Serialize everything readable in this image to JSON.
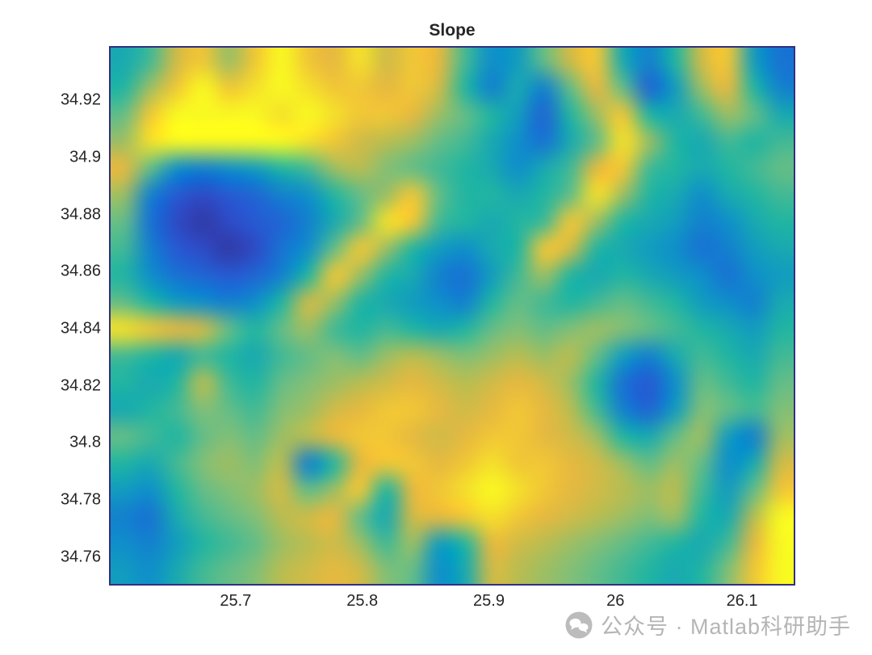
{
  "title": "Slope",
  "watermark": {
    "text": "公众号 · Matlab科研助手",
    "icon": "chat-bubbles-icon",
    "color": "#b5b5b5"
  },
  "styles": {
    "background": "#ffffff",
    "axis_text_color": "#262626",
    "axes_border_color": "#31307f"
  },
  "chart_data": {
    "type": "heatmap",
    "title": "Slope",
    "xlabel": "",
    "ylabel": "",
    "x_range": [
      25.6,
      26.142
    ],
    "y_range": [
      34.75,
      34.939
    ],
    "x_ticks": [
      25.7,
      25.8,
      25.9,
      26,
      26.1
    ],
    "x_tick_labels": [
      "25.7",
      "25.8",
      "25.9",
      "26",
      "26.1"
    ],
    "y_ticks": [
      34.92,
      34.9,
      34.88,
      34.86,
      34.84,
      34.82,
      34.8,
      34.78,
      34.76
    ],
    "y_tick_labels": [
      "34.92",
      "34.9",
      "34.88",
      "34.86",
      "34.84",
      "34.82",
      "34.8",
      "34.78",
      "34.76"
    ],
    "legend": "none",
    "grid": false,
    "colormap": "parula",
    "colormap_stops": [
      [
        0.0,
        "#352a87"
      ],
      [
        0.12,
        "#2c52d3"
      ],
      [
        0.25,
        "#1873d3"
      ],
      [
        0.37,
        "#0d95c8"
      ],
      [
        0.5,
        "#21b5a2"
      ],
      [
        0.62,
        "#71bf82"
      ],
      [
        0.75,
        "#b9bd51"
      ],
      [
        0.87,
        "#efb83c"
      ],
      [
        1.0,
        "#f9f921"
      ]
    ],
    "value_scale": [
      0,
      1
    ],
    "rows_order": "top-to-bottom (latitude 34.935 down to 34.755)",
    "cols_order": "left-to-right (longitude 25.62 up to 26.15)",
    "values": [
      [
        0.45,
        0.55,
        0.8,
        0.9,
        0.7,
        0.9,
        1.0,
        0.9,
        0.85,
        0.95,
        0.8,
        0.9,
        0.85,
        0.55,
        0.35,
        0.4,
        0.6,
        0.8,
        0.9,
        0.45,
        0.3,
        0.5,
        0.8,
        0.9,
        0.4,
        0.25
      ],
      [
        0.5,
        0.7,
        0.9,
        1.0,
        0.9,
        0.95,
        1.0,
        0.95,
        0.9,
        0.9,
        0.85,
        0.9,
        0.8,
        0.5,
        0.3,
        0.45,
        0.3,
        0.6,
        0.85,
        0.6,
        0.2,
        0.4,
        0.7,
        0.85,
        0.5,
        0.3
      ],
      [
        0.6,
        0.9,
        1.0,
        1.0,
        1.0,
        1.0,
        0.95,
        1.0,
        0.95,
        0.9,
        0.9,
        0.85,
        0.7,
        0.6,
        0.5,
        0.4,
        0.2,
        0.5,
        0.7,
        0.9,
        0.5,
        0.45,
        0.55,
        0.7,
        0.6,
        0.45
      ],
      [
        0.7,
        0.95,
        1.0,
        1.0,
        1.0,
        1.0,
        1.0,
        0.95,
        0.9,
        0.8,
        0.75,
        0.7,
        0.6,
        0.55,
        0.45,
        0.35,
        0.25,
        0.45,
        0.6,
        0.95,
        0.7,
        0.5,
        0.45,
        0.55,
        0.5,
        0.55
      ],
      [
        0.85,
        0.6,
        0.35,
        0.3,
        0.35,
        0.4,
        0.5,
        0.55,
        0.7,
        0.75,
        0.65,
        0.6,
        0.55,
        0.5,
        0.45,
        0.35,
        0.45,
        0.55,
        0.85,
        0.9,
        0.55,
        0.5,
        0.45,
        0.5,
        0.55,
        0.6
      ],
      [
        0.7,
        0.3,
        0.15,
        0.1,
        0.15,
        0.2,
        0.3,
        0.35,
        0.5,
        0.6,
        0.7,
        0.9,
        0.6,
        0.5,
        0.5,
        0.45,
        0.5,
        0.6,
        0.95,
        0.7,
        0.5,
        0.45,
        0.35,
        0.45,
        0.5,
        0.55
      ],
      [
        0.6,
        0.25,
        0.1,
        0.05,
        0.1,
        0.15,
        0.2,
        0.3,
        0.45,
        0.6,
        0.95,
        0.9,
        0.55,
        0.5,
        0.45,
        0.5,
        0.55,
        0.9,
        0.7,
        0.5,
        0.45,
        0.4,
        0.3,
        0.35,
        0.45,
        0.5
      ],
      [
        0.55,
        0.3,
        0.15,
        0.1,
        0.05,
        0.1,
        0.25,
        0.35,
        0.6,
        0.9,
        0.7,
        0.5,
        0.4,
        0.35,
        0.45,
        0.5,
        0.9,
        0.8,
        0.5,
        0.45,
        0.4,
        0.35,
        0.25,
        0.3,
        0.4,
        0.45
      ],
      [
        0.5,
        0.35,
        0.25,
        0.2,
        0.15,
        0.2,
        0.3,
        0.5,
        0.9,
        0.7,
        0.5,
        0.45,
        0.3,
        0.25,
        0.4,
        0.55,
        0.7,
        0.5,
        0.45,
        0.5,
        0.45,
        0.4,
        0.35,
        0.25,
        0.35,
        0.4
      ],
      [
        0.6,
        0.5,
        0.4,
        0.35,
        0.3,
        0.35,
        0.5,
        0.8,
        0.7,
        0.5,
        0.45,
        0.4,
        0.35,
        0.3,
        0.5,
        0.6,
        0.55,
        0.5,
        0.55,
        0.6,
        0.55,
        0.5,
        0.4,
        0.35,
        0.3,
        0.45
      ],
      [
        0.95,
        0.9,
        0.85,
        0.8,
        0.6,
        0.5,
        0.6,
        0.7,
        0.55,
        0.5,
        0.55,
        0.5,
        0.45,
        0.5,
        0.6,
        0.65,
        0.6,
        0.65,
        0.7,
        0.65,
        0.6,
        0.55,
        0.5,
        0.45,
        0.4,
        0.5
      ],
      [
        0.55,
        0.5,
        0.45,
        0.55,
        0.5,
        0.45,
        0.55,
        0.6,
        0.65,
        0.6,
        0.7,
        0.75,
        0.7,
        0.65,
        0.7,
        0.75,
        0.7,
        0.75,
        0.6,
        0.4,
        0.3,
        0.45,
        0.55,
        0.5,
        0.45,
        0.55
      ],
      [
        0.5,
        0.45,
        0.5,
        0.75,
        0.55,
        0.5,
        0.6,
        0.65,
        0.7,
        0.75,
        0.8,
        0.85,
        0.8,
        0.75,
        0.8,
        0.85,
        0.8,
        0.7,
        0.5,
        0.25,
        0.15,
        0.35,
        0.6,
        0.55,
        0.5,
        0.6
      ],
      [
        0.45,
        0.5,
        0.55,
        0.65,
        0.6,
        0.55,
        0.65,
        0.7,
        0.8,
        0.85,
        0.9,
        0.9,
        0.85,
        0.8,
        0.85,
        0.9,
        0.85,
        0.75,
        0.55,
        0.3,
        0.2,
        0.4,
        0.65,
        0.6,
        0.55,
        0.65
      ],
      [
        0.6,
        0.55,
        0.5,
        0.6,
        0.65,
        0.6,
        0.7,
        0.75,
        0.85,
        0.9,
        0.9,
        0.85,
        0.8,
        0.85,
        0.9,
        0.9,
        0.85,
        0.8,
        0.7,
        0.5,
        0.45,
        0.6,
        0.7,
        0.4,
        0.3,
        0.7
      ],
      [
        0.5,
        0.45,
        0.55,
        0.65,
        0.7,
        0.65,
        0.75,
        0.3,
        0.5,
        0.85,
        0.9,
        0.9,
        0.85,
        0.9,
        0.95,
        0.9,
        0.9,
        0.85,
        0.8,
        0.7,
        0.6,
        0.7,
        0.6,
        0.35,
        0.45,
        0.8
      ],
      [
        0.4,
        0.35,
        0.5,
        0.6,
        0.65,
        0.7,
        0.8,
        0.6,
        0.7,
        0.9,
        0.5,
        0.85,
        0.9,
        0.95,
        1.0,
        0.95,
        0.9,
        0.85,
        0.8,
        0.75,
        0.7,
        0.75,
        0.55,
        0.4,
        0.6,
        0.9
      ],
      [
        0.3,
        0.25,
        0.45,
        0.55,
        0.6,
        0.65,
        0.75,
        0.8,
        0.85,
        0.6,
        0.45,
        0.8,
        0.85,
        0.9,
        0.95,
        0.9,
        0.85,
        0.8,
        0.75,
        0.7,
        0.65,
        0.7,
        0.5,
        0.45,
        0.75,
        1.0
      ],
      [
        0.35,
        0.3,
        0.4,
        0.5,
        0.55,
        0.6,
        0.7,
        0.75,
        0.8,
        0.7,
        0.55,
        0.7,
        0.4,
        0.5,
        0.85,
        0.8,
        0.75,
        0.7,
        0.65,
        0.6,
        0.55,
        0.5,
        0.45,
        0.55,
        0.85,
        1.0
      ],
      [
        0.4,
        0.35,
        0.45,
        0.55,
        0.6,
        0.65,
        0.75,
        0.8,
        0.85,
        0.8,
        0.65,
        0.6,
        0.35,
        0.45,
        0.8,
        0.75,
        0.7,
        0.65,
        0.6,
        0.55,
        0.5,
        0.45,
        0.5,
        0.65,
        0.9,
        1.0
      ]
    ]
  }
}
